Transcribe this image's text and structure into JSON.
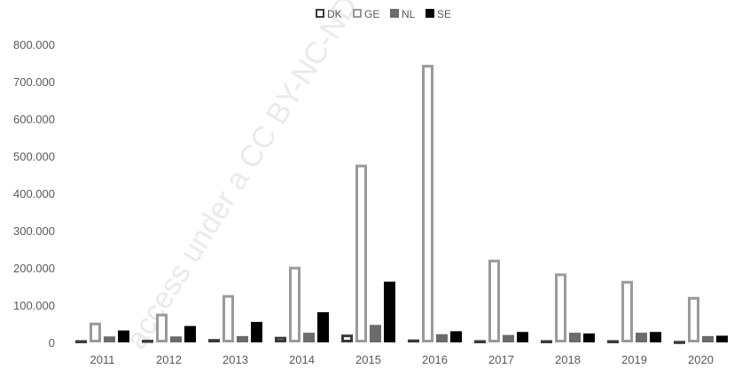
{
  "watermark": "access under a CC BY-NC-ND",
  "chart_data": {
    "type": "bar",
    "title": "",
    "xlabel": "",
    "ylabel": "",
    "categories": [
      "2011",
      "2012",
      "2013",
      "2014",
      "2015",
      "2016",
      "2017",
      "2018",
      "2019",
      "2020"
    ],
    "ylim": [
      0,
      800000
    ],
    "yticks": [
      0,
      100000,
      200000,
      300000,
      400000,
      500000,
      600000,
      700000,
      800000
    ],
    "ytick_labels": [
      "0",
      "100.000",
      "200.000",
      "300.000",
      "400.000",
      "500.000",
      "600.000",
      "700.000",
      "800.000"
    ],
    "grid": false,
    "legend_position": "top-center",
    "series": [
      {
        "name": "DK",
        "style": "outline",
        "color": "#3a3a3a",
        "values": [
          6000,
          7000,
          9000,
          15000,
          21000,
          8000,
          6000,
          6000,
          6000,
          4000
        ]
      },
      {
        "name": "GE",
        "style": "outline",
        "color": "#9a9a9a",
        "values": [
          53000,
          77000,
          127000,
          203000,
          477000,
          745000,
          222000,
          185000,
          165000,
          122000
        ]
      },
      {
        "name": "NL",
        "style": "fill",
        "color": "#6b6b6b",
        "values": [
          16000,
          16000,
          17000,
          26000,
          47000,
          22000,
          20000,
          26000,
          26000,
          17000
        ]
      },
      {
        "name": "SE",
        "style": "fill",
        "color": "#000000",
        "values": [
          32000,
          44000,
          55000,
          81000,
          163000,
          30000,
          28000,
          24000,
          28000,
          18000
        ]
      }
    ]
  }
}
